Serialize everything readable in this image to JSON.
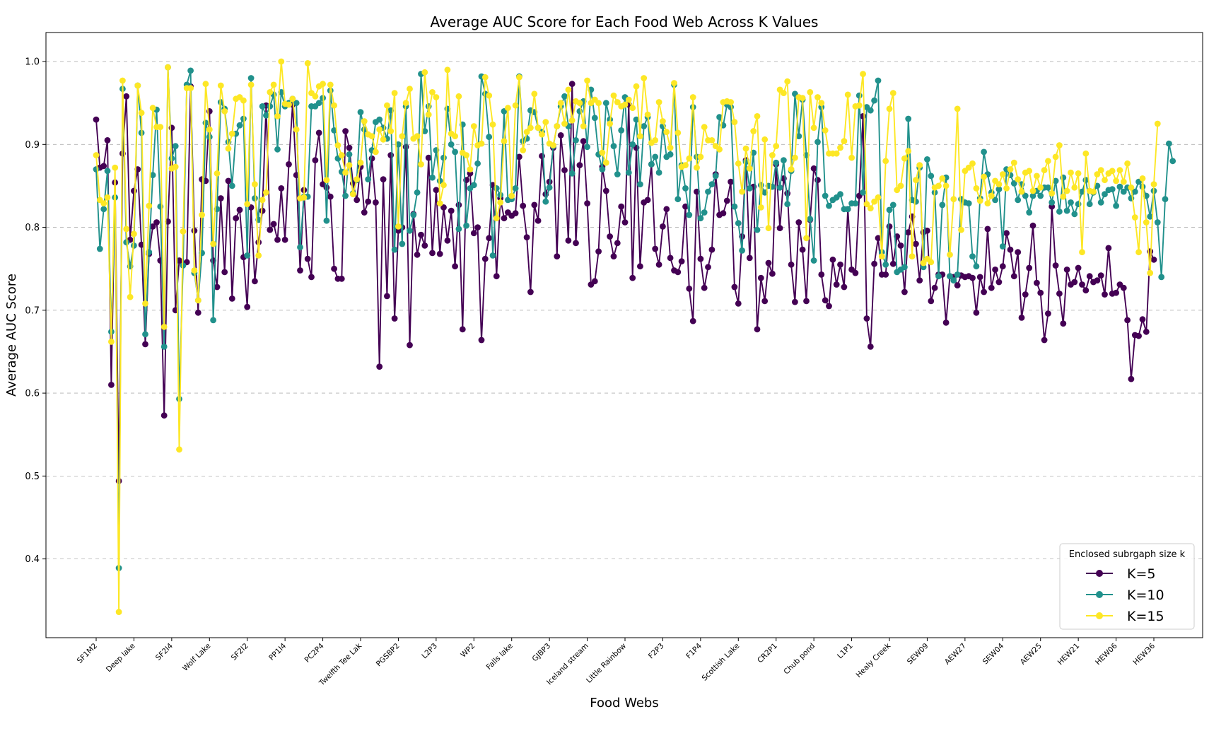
{
  "chart_data": {
    "type": "line",
    "title": "Average AUC Score for Each Food Web Across K Values",
    "xlabel": "Food Webs",
    "ylabel": "Average AUC Score",
    "ylim": [
      0.305,
      1.035
    ],
    "yticks": [
      "0.4",
      "0.5",
      "0.6",
      "0.7",
      "0.8",
      "0.9",
      "1.0"
    ],
    "grid": "y-dashed",
    "legend_title": "Enclosed subrgaph size k",
    "legend_position": "lower-right",
    "x_tick_labels": [
      "SF1M2",
      "Deep lake",
      "SF2I4",
      "Wolf Lake",
      "SF2I2",
      "PP1I4",
      "PC2P4",
      "Twelfth Tee Lak",
      "PGSBP2",
      "L2P3",
      "WP2",
      "Falls lake",
      "GJBP3",
      "Iceland stream",
      "Little Rainbow",
      "F2P3",
      "F1P4",
      "Scottish Lake",
      "CR2P1",
      "Chub pond",
      "L1P1",
      "Healy Creek",
      "SEW09",
      "AEW27",
      "SEW04",
      "AEW25",
      "HEW21",
      "HEW06",
      "HEW36"
    ],
    "series": [
      {
        "name": "K=5",
        "color": "#440154",
        "values": [
          0.93,
          0.872,
          0.874,
          0.905,
          0.61,
          0.854,
          0.494,
          0.889,
          0.958,
          0.785,
          0.844,
          0.87,
          0.779,
          0.659,
          0.768,
          0.801,
          0.806,
          0.76,
          0.573,
          0.807,
          0.92,
          0.7,
          0.76,
          0.755,
          0.758,
          0.97,
          0.796,
          0.697,
          0.858,
          0.856,
          0.94,
          0.76,
          0.728,
          0.835,
          0.746,
          0.856,
          0.714,
          0.811,
          0.821,
          0.764,
          0.704,
          0.824,
          0.735,
          0.782,
          0.82,
          0.947,
          0.797,
          0.804,
          0.785,
          0.847,
          0.785,
          0.876,
          0.948,
          0.863,
          0.748,
          0.845,
          0.762,
          0.74,
          0.881,
          0.914,
          0.852,
          0.848,
          0.837,
          0.75,
          0.738,
          0.738,
          0.916,
          0.896,
          0.853,
          0.833,
          0.873,
          0.818,
          0.831,
          0.883,
          0.83,
          0.632,
          0.858,
          0.717,
          0.887,
          0.69,
          0.796,
          0.8,
          0.897,
          0.658,
          0.816,
          0.767,
          0.791,
          0.778,
          0.884,
          0.769,
          0.845,
          0.768,
          0.824,
          0.784,
          0.82,
          0.753,
          0.827,
          0.677,
          0.857,
          0.865,
          0.793,
          0.8,
          0.664,
          0.762,
          0.787,
          0.851,
          0.741,
          0.835,
          0.811,
          0.818,
          0.814,
          0.817,
          0.885,
          0.826,
          0.788,
          0.722,
          0.827,
          0.808,
          0.886,
          0.84,
          0.855,
          0.896,
          0.765,
          0.911,
          0.869,
          0.784,
          0.973,
          0.781,
          0.875,
          0.904,
          0.829,
          0.731,
          0.735,
          0.771,
          0.873,
          0.844,
          0.789,
          0.765,
          0.781,
          0.825,
          0.806,
          0.948,
          0.739,
          0.896,
          0.753,
          0.83,
          0.833,
          0.876,
          0.774,
          0.755,
          0.801,
          0.822,
          0.763,
          0.748,
          0.746,
          0.759,
          0.825,
          0.726,
          0.687,
          0.843,
          0.762,
          0.727,
          0.752,
          0.773,
          0.864,
          0.815,
          0.817,
          0.832,
          0.855,
          0.728,
          0.708,
          0.789,
          0.881,
          0.763,
          0.849,
          0.677,
          0.739,
          0.711,
          0.757,
          0.744,
          0.876,
          0.799,
          0.859,
          0.841,
          0.755,
          0.71,
          0.806,
          0.773,
          0.711,
          0.809,
          0.871,
          0.857,
          0.743,
          0.712,
          0.705,
          0.761,
          0.731,
          0.755,
          0.728,
          0.822,
          0.749,
          0.745,
          0.838,
          0.934,
          0.69,
          0.656,
          0.756,
          0.787,
          0.743,
          0.743,
          0.801,
          0.756,
          0.789,
          0.778,
          0.722,
          0.794,
          0.813,
          0.78,
          0.736,
          0.794,
          0.796,
          0.711,
          0.727,
          0.743,
          0.743,
          0.685,
          0.741,
          0.74,
          0.73,
          0.742,
          0.74,
          0.741,
          0.739,
          0.697,
          0.74,
          0.722,
          0.798,
          0.727,
          0.749,
          0.734,
          0.753,
          0.793,
          0.773,
          0.741,
          0.77,
          0.691,
          0.719,
          0.751,
          0.802,
          0.733,
          0.721,
          0.664,
          0.696,
          0.825,
          0.754,
          0.72,
          0.684,
          0.749,
          0.731,
          0.734,
          0.751,
          0.731,
          0.724,
          0.741,
          0.734,
          0.736,
          0.742,
          0.719,
          0.775,
          0.72,
          0.721,
          0.731,
          0.727,
          0.688,
          0.617,
          0.67,
          0.669,
          0.689,
          0.674,
          0.771,
          0.761
        ]
      },
      {
        "name": "K=10",
        "color": "#21918c",
        "values": [
          0.87,
          0.774,
          0.822,
          0.868,
          0.674,
          0.836,
          0.389,
          0.967,
          0.782,
          0.753,
          0.778,
          0.971,
          0.914,
          0.671,
          0.77,
          0.863,
          0.942,
          0.825,
          0.656,
          0.993,
          0.883,
          0.898,
          0.593,
          0.754,
          0.972,
          0.989,
          0.745,
          0.712,
          0.769,
          0.926,
          0.909,
          0.688,
          0.822,
          0.951,
          0.943,
          0.903,
          0.85,
          0.913,
          0.923,
          0.931,
          0.766,
          0.98,
          0.835,
          0.809,
          0.946,
          0.935,
          0.946,
          0.96,
          0.894,
          0.963,
          0.946,
          0.95,
          0.955,
          0.95,
          0.776,
          0.837,
          0.837,
          0.946,
          0.946,
          0.95,
          0.956,
          0.808,
          0.965,
          0.917,
          0.883,
          0.867,
          0.838,
          0.888,
          0.841,
          0.857,
          0.939,
          0.918,
          0.858,
          0.893,
          0.927,
          0.93,
          0.92,
          0.907,
          0.941,
          0.773,
          0.9,
          0.78,
          0.946,
          0.796,
          0.815,
          0.842,
          0.985,
          0.916,
          0.946,
          0.86,
          0.893,
          0.856,
          0.884,
          0.943,
          0.9,
          0.891,
          0.798,
          0.924,
          0.802,
          0.847,
          0.851,
          0.877,
          0.982,
          0.961,
          0.909,
          0.766,
          0.847,
          0.839,
          0.94,
          0.833,
          0.834,
          0.847,
          0.982,
          0.904,
          0.907,
          0.941,
          0.939,
          0.92,
          0.915,
          0.831,
          0.848,
          0.898,
          0.922,
          0.946,
          0.958,
          0.922,
          0.865,
          0.905,
          0.94,
          0.952,
          0.897,
          0.966,
          0.932,
          0.888,
          0.87,
          0.95,
          0.93,
          0.898,
          0.864,
          0.917,
          0.957,
          0.866,
          0.9,
          0.93,
          0.852,
          0.922,
          0.933,
          0.876,
          0.885,
          0.866,
          0.922,
          0.885,
          0.888,
          0.972,
          0.834,
          0.875,
          0.847,
          0.815,
          0.945,
          0.885,
          0.811,
          0.818,
          0.843,
          0.852,
          0.862,
          0.933,
          0.923,
          0.948,
          0.945,
          0.825,
          0.805,
          0.772,
          0.879,
          0.847,
          0.89,
          0.797,
          0.851,
          0.842,
          0.85,
          0.849,
          0.878,
          0.848,
          0.881,
          0.828,
          0.868,
          0.961,
          0.91,
          0.954,
          0.887,
          0.81,
          0.76,
          0.903,
          0.945,
          0.838,
          0.826,
          0.833,
          0.836,
          0.84,
          0.822,
          0.822,
          0.829,
          0.829,
          0.959,
          0.842,
          0.945,
          0.941,
          0.953,
          0.977,
          0.77,
          0.755,
          0.821,
          0.827,
          0.746,
          0.749,
          0.752,
          0.931,
          0.833,
          0.831,
          0.872,
          0.752,
          0.882,
          0.862,
          0.842,
          0.741,
          0.827,
          0.86,
          0.741,
          0.736,
          0.743,
          0.834,
          0.83,
          0.829,
          0.765,
          0.753,
          0.835,
          0.891,
          0.864,
          0.842,
          0.833,
          0.846,
          0.777,
          0.87,
          0.863,
          0.853,
          0.833,
          0.852,
          0.838,
          0.818,
          0.838,
          0.844,
          0.838,
          0.848,
          0.848,
          0.83,
          0.856,
          0.819,
          0.86,
          0.82,
          0.83,
          0.816,
          0.828,
          0.843,
          0.857,
          0.828,
          0.842,
          0.85,
          0.83,
          0.84,
          0.845,
          0.846,
          0.826,
          0.849,
          0.843,
          0.848,
          0.835,
          0.843,
          0.855,
          0.849,
          0.838,
          0.813,
          0.844,
          0.806,
          0.74,
          0.834,
          0.901,
          0.88
        ]
      },
      {
        "name": "K=15",
        "color": "#fde725",
        "values": [
          0.887,
          0.833,
          0.829,
          0.836,
          0.662,
          0.872,
          0.336,
          0.977,
          0.798,
          0.716,
          0.792,
          0.971,
          0.938,
          0.708,
          0.826,
          0.944,
          0.921,
          0.921,
          0.68,
          0.993,
          0.871,
          0.873,
          0.532,
          0.795,
          0.968,
          0.968,
          0.748,
          0.712,
          0.815,
          0.973,
          0.918,
          0.78,
          0.865,
          0.971,
          0.94,
          0.895,
          0.913,
          0.955,
          0.957,
          0.953,
          0.828,
          0.972,
          0.852,
          0.766,
          0.833,
          0.842,
          0.963,
          0.972,
          0.934,
          1.0,
          0.949,
          0.948,
          0.955,
          0.918,
          0.835,
          0.836,
          0.998,
          0.962,
          0.958,
          0.97,
          0.973,
          0.857,
          0.972,
          0.947,
          0.899,
          0.887,
          0.866,
          0.875,
          0.84,
          0.858,
          0.878,
          0.928,
          0.912,
          0.91,
          0.891,
          0.918,
          0.906,
          0.947,
          0.916,
          0.962,
          0.801,
          0.91,
          0.95,
          0.967,
          0.907,
          0.91,
          0.876,
          0.987,
          0.936,
          0.963,
          0.957,
          0.829,
          0.851,
          0.99,
          0.913,
          0.91,
          0.958,
          0.89,
          0.887,
          0.87,
          0.922,
          0.899,
          0.901,
          0.981,
          0.959,
          0.924,
          0.811,
          0.83,
          0.904,
          0.944,
          0.838,
          0.947,
          0.981,
          0.893,
          0.915,
          0.92,
          0.961,
          0.92,
          0.912,
          0.927,
          0.901,
          0.899,
          0.922,
          0.95,
          0.925,
          0.966,
          0.929,
          0.952,
          0.95,
          0.922,
          0.977,
          0.95,
          0.954,
          0.95,
          0.89,
          0.878,
          0.925,
          0.959,
          0.951,
          0.946,
          0.948,
          0.954,
          0.944,
          0.97,
          0.91,
          0.98,
          0.936,
          0.902,
          0.905,
          0.951,
          0.928,
          0.915,
          0.896,
          0.974,
          0.914,
          0.873,
          0.875,
          0.883,
          0.957,
          0.872,
          0.885,
          0.921,
          0.905,
          0.905,
          0.898,
          0.894,
          0.951,
          0.952,
          0.951,
          0.927,
          0.877,
          0.843,
          0.895,
          0.871,
          0.916,
          0.934,
          0.824,
          0.906,
          0.799,
          0.887,
          0.898,
          0.966,
          0.962,
          0.976,
          0.87,
          0.884,
          0.957,
          0.956,
          0.787,
          0.963,
          0.92,
          0.957,
          0.95,
          0.917,
          0.889,
          0.889,
          0.889,
          0.896,
          0.904,
          0.96,
          0.884,
          0.946,
          0.947,
          0.985,
          0.828,
          0.823,
          0.831,
          0.836,
          0.765,
          0.88,
          0.943,
          0.962,
          0.845,
          0.85,
          0.883,
          0.892,
          0.765,
          0.857,
          0.875,
          0.757,
          0.762,
          0.758,
          0.848,
          0.85,
          0.859,
          0.85,
          0.767,
          0.834,
          0.943,
          0.797,
          0.868,
          0.872,
          0.877,
          0.847,
          0.832,
          0.861,
          0.829,
          0.838,
          0.856,
          0.852,
          0.864,
          0.847,
          0.87,
          0.878,
          0.858,
          0.843,
          0.866,
          0.868,
          0.844,
          0.862,
          0.848,
          0.869,
          0.88,
          0.841,
          0.885,
          0.899,
          0.837,
          0.844,
          0.866,
          0.848,
          0.865,
          0.77,
          0.889,
          0.844,
          0.843,
          0.864,
          0.869,
          0.857,
          0.865,
          0.868,
          0.856,
          0.869,
          0.855,
          0.877,
          0.848,
          0.812,
          0.77,
          0.859,
          0.806,
          0.745,
          0.852,
          0.925
        ]
      }
    ]
  }
}
